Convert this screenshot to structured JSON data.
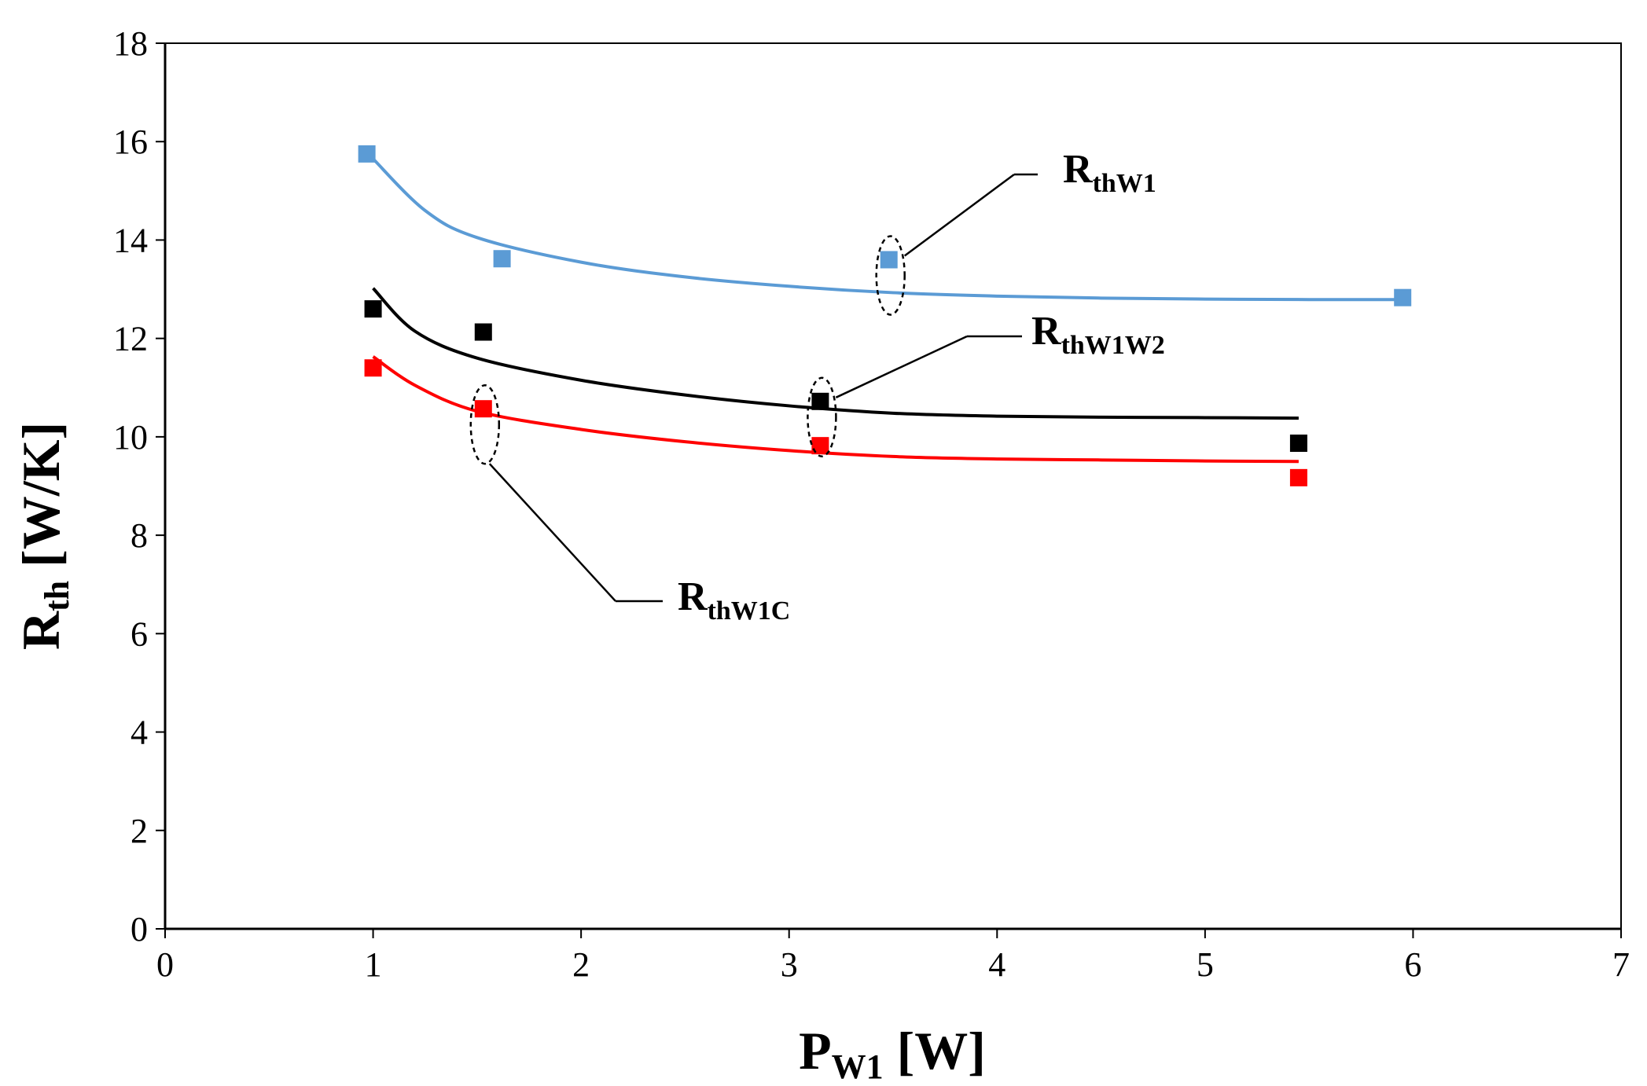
{
  "chart_data": {
    "type": "scatter",
    "xlabel": {
      "main": "P",
      "sub": "W1",
      "unit": " [W]"
    },
    "ylabel": {
      "main": "R",
      "sub": "th",
      "unit": " [W/K]"
    },
    "xlim": [
      0,
      7
    ],
    "ylim": [
      0,
      18
    ],
    "x_ticks": [
      0,
      1,
      2,
      3,
      4,
      5,
      6,
      7
    ],
    "y_ticks": [
      0,
      2,
      4,
      6,
      8,
      10,
      12,
      14,
      16,
      18
    ],
    "grid": false,
    "legend": "none",
    "series": [
      {
        "name": "RthW1",
        "label_main": "R",
        "label_sub": "thW1",
        "color": "#5b9bd5",
        "points": [
          [
            0.97,
            15.75
          ],
          [
            1.62,
            13.62
          ],
          [
            3.48,
            13.6
          ],
          [
            5.95,
            12.83
          ]
        ],
        "trend": [
          [
            1.0,
            15.65
          ],
          [
            1.25,
            14.6
          ],
          [
            1.5,
            14.05
          ],
          [
            2.0,
            13.55
          ],
          [
            2.5,
            13.25
          ],
          [
            3.0,
            13.06
          ],
          [
            3.5,
            12.93
          ],
          [
            4.0,
            12.86
          ],
          [
            4.5,
            12.82
          ],
          [
            5.0,
            12.8
          ],
          [
            5.5,
            12.79
          ],
          [
            5.95,
            12.79
          ]
        ],
        "callout_index": 2
      },
      {
        "name": "RthW1W2",
        "label_main": "R",
        "label_sub": "thW1W2",
        "color": "#000000",
        "points": [
          [
            1.0,
            12.6
          ],
          [
            1.53,
            12.13
          ],
          [
            3.15,
            10.72
          ],
          [
            5.45,
            9.87
          ]
        ],
        "trend": [
          [
            1.0,
            13.02
          ],
          [
            1.2,
            12.15
          ],
          [
            1.5,
            11.6
          ],
          [
            2.0,
            11.15
          ],
          [
            2.5,
            10.85
          ],
          [
            3.0,
            10.63
          ],
          [
            3.5,
            10.48
          ],
          [
            4.0,
            10.42
          ],
          [
            4.5,
            10.4
          ],
          [
            5.0,
            10.39
          ],
          [
            5.45,
            10.38
          ]
        ],
        "callout_index": 2
      },
      {
        "name": "RthW1C",
        "label_main": "R",
        "label_sub": "thW1C",
        "color": "#ff0000",
        "points": [
          [
            1.0,
            11.4
          ],
          [
            1.53,
            10.57
          ],
          [
            3.15,
            9.82
          ],
          [
            5.45,
            9.17
          ]
        ],
        "trend": [
          [
            1.0,
            11.63
          ],
          [
            1.2,
            11.05
          ],
          [
            1.5,
            10.52
          ],
          [
            2.0,
            10.15
          ],
          [
            2.5,
            9.9
          ],
          [
            3.0,
            9.72
          ],
          [
            3.5,
            9.6
          ],
          [
            4.0,
            9.55
          ],
          [
            4.5,
            9.53
          ],
          [
            5.0,
            9.51
          ],
          [
            5.45,
            9.5
          ]
        ],
        "callout_index": 1
      }
    ]
  }
}
